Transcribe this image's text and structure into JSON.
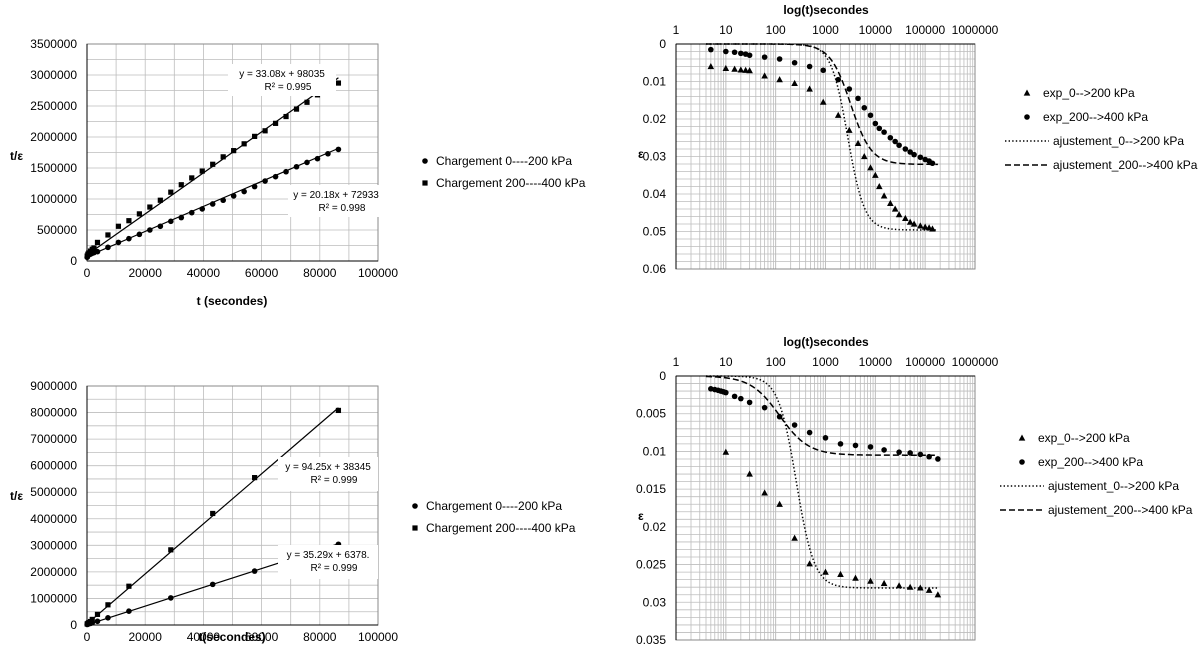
{
  "chart_data": [
    {
      "type": "scatter",
      "xlabel": "t (secondes)",
      "ylabel": "t/ε",
      "xlim": [
        0,
        100000
      ],
      "ylim": [
        0,
        3500000
      ],
      "x_ticks": [
        "0",
        "20000",
        "40000",
        "60000",
        "80000",
        "100000"
      ],
      "y_ticks": [
        "0",
        "500000",
        "1000000",
        "1500000",
        "2000000",
        "2500000",
        "3000000",
        "3500000"
      ],
      "grid": true,
      "legend_position": "right",
      "series": [
        {
          "name": "Chargement  0----200 kPa",
          "marker": "circle",
          "x": [
            60,
            300,
            600,
            1200,
            1800,
            2400,
            3600,
            7200,
            10800,
            14400,
            18000,
            21600,
            25200,
            28800,
            32400,
            36000,
            39600,
            43200,
            46800,
            50400,
            54000,
            57600,
            61200,
            64800,
            68400,
            72000,
            75600,
            79200,
            82800,
            86400
          ],
          "y": [
            60000,
            80000,
            100000,
            110000,
            125000,
            135000,
            150000,
            220000,
            300000,
            360000,
            430000,
            500000,
            560000,
            640000,
            700000,
            780000,
            840000,
            920000,
            980000,
            1050000,
            1120000,
            1200000,
            1290000,
            1360000,
            1440000,
            1520000,
            1590000,
            1650000,
            1730000,
            1800000
          ],
          "trendline": {
            "slope": 20.18,
            "intercept": 72933,
            "equation": "y = 20.18x + 72933",
            "r2": "R² = 0.998"
          }
        },
        {
          "name": "Chargement  200----400 kPa",
          "marker": "square",
          "x": [
            60,
            300,
            600,
            1200,
            1800,
            2400,
            3600,
            7200,
            10800,
            14400,
            18000,
            21600,
            25200,
            28800,
            32400,
            36000,
            39600,
            43200,
            46800,
            50400,
            54000,
            57600,
            61200,
            64800,
            68400,
            72000,
            75600,
            79200,
            86400
          ],
          "y": [
            80000,
            110000,
            130000,
            160000,
            190000,
            210000,
            300000,
            420000,
            560000,
            650000,
            760000,
            870000,
            980000,
            1110000,
            1230000,
            1340000,
            1450000,
            1560000,
            1680000,
            1780000,
            1890000,
            2010000,
            2100000,
            2220000,
            2330000,
            2450000,
            2560000,
            2680000,
            2870000
          ],
          "trendline": {
            "slope": 33.08,
            "intercept": 98035,
            "equation": "y = 33.08x + 98035",
            "r2": "R² = 0.995"
          }
        }
      ]
    },
    {
      "type": "scatter",
      "xlabel": "log(t)secondes",
      "ylabel": "ε",
      "x_scale": "log",
      "xlim": [
        1,
        1000000
      ],
      "ylim": [
        0,
        0.06
      ],
      "y_inverted": true,
      "x_ticks": [
        "1",
        "10",
        "100",
        "1000",
        "10000",
        "100000",
        "1000000"
      ],
      "y_ticks": [
        "0",
        "0.01",
        "0.02",
        "0.03",
        "0.04",
        "0.05",
        "0.06"
      ],
      "grid": true,
      "legend_position": "right",
      "series": [
        {
          "name": "exp_0-->200 kPa",
          "marker": "triangle",
          "x": [
            5,
            10,
            15,
            20,
            25,
            30,
            60,
            120,
            240,
            480,
            900,
            1800,
            3000,
            4500,
            6000,
            8000,
            10000,
            12000,
            15000,
            20000,
            25000,
            30000,
            40000,
            50000,
            60000,
            80000,
            100000,
            120000,
            140000
          ],
          "y": [
            0.006,
            0.0065,
            0.0067,
            0.0069,
            0.007,
            0.0071,
            0.0085,
            0.0095,
            0.0105,
            0.012,
            0.0155,
            0.019,
            0.023,
            0.0265,
            0.03,
            0.033,
            0.035,
            0.038,
            0.0405,
            0.0425,
            0.044,
            0.0455,
            0.0465,
            0.0475,
            0.048,
            0.0485,
            0.0488,
            0.049,
            0.0493
          ]
        },
        {
          "name": "exp_200-->400 kPa",
          "marker": "circle",
          "x": [
            5,
            10,
            15,
            20,
            25,
            30,
            60,
            120,
            240,
            480,
            900,
            1800,
            3000,
            4500,
            6000,
            8000,
            10000,
            12000,
            15000,
            20000,
            25000,
            30000,
            40000,
            50000,
            60000,
            80000,
            100000,
            120000,
            140000
          ],
          "y": [
            0.0015,
            0.002,
            0.0022,
            0.0025,
            0.0027,
            0.003,
            0.0035,
            0.004,
            0.005,
            0.006,
            0.007,
            0.0095,
            0.012,
            0.0145,
            0.017,
            0.019,
            0.0212,
            0.0225,
            0.0235,
            0.025,
            0.026,
            0.027,
            0.028,
            0.0288,
            0.0295,
            0.0302,
            0.0308,
            0.0312,
            0.0318
          ]
        },
        {
          "name": "ajustement_0-->200 kPa",
          "line": "dotted",
          "function": "logistic",
          "params": {
            "eps_inf": 0.0496,
            "t50": 2800,
            "k": 2.6
          }
        },
        {
          "name": "ajustement_200-->400 kPa",
          "line": "dashed",
          "function": "logistic",
          "params": {
            "eps_inf": 0.0321,
            "t50": 3200,
            "k": 2.1
          }
        }
      ]
    },
    {
      "type": "scatter",
      "xlabel": "t(secondes)",
      "ylabel": "t/ε",
      "xlim": [
        0,
        100000
      ],
      "ylim": [
        0,
        9000000
      ],
      "x_ticks": [
        "0",
        "20000",
        "40000",
        "60000",
        "80000",
        "100000"
      ],
      "y_ticks": [
        "0",
        "1000000",
        "2000000",
        "3000000",
        "4000000",
        "5000000",
        "6000000",
        "7000000",
        "8000000",
        "9000000"
      ],
      "grid": true,
      "legend_position": "right",
      "series": [
        {
          "name": "Chargement  0----200 kPa",
          "marker": "circle",
          "x": [
            60,
            300,
            600,
            1200,
            1800,
            3600,
            7200,
            14400,
            28800,
            43200,
            57600,
            86400
          ],
          "y": [
            20000,
            30000,
            50000,
            60000,
            80000,
            140000,
            270000,
            520000,
            1020000,
            1530000,
            2030000,
            3040000
          ],
          "trendline": {
            "slope": 35.29,
            "intercept": 6378,
            "equation": "y = 35.29x + 6378.",
            "r2": "R² = 0.999"
          }
        },
        {
          "name": "Chargement  200----400 kPa",
          "marker": "square",
          "x": [
            60,
            300,
            600,
            1200,
            1800,
            3600,
            7200,
            14400,
            28800,
            43200,
            57600,
            86400
          ],
          "y": [
            40000,
            60000,
            90000,
            130000,
            210000,
            400000,
            760000,
            1460000,
            2830000,
            4200000,
            5550000,
            8080000
          ],
          "trendline": {
            "slope": 94.25,
            "intercept": 38345,
            "equation": "y = 94.25x + 38345",
            "r2": "R² = 0.999"
          }
        }
      ]
    },
    {
      "type": "scatter",
      "xlabel": "log(t)secondes",
      "ylabel": "ε",
      "x_scale": "log",
      "xlim": [
        1,
        1000000
      ],
      "ylim": [
        0,
        0.035
      ],
      "y_inverted": true,
      "x_ticks": [
        "1",
        "10",
        "100",
        "1000",
        "10000",
        "100000",
        "1000000"
      ],
      "y_ticks": [
        "0",
        "0.005",
        "0.01",
        "0.015",
        "0.02",
        "0.025",
        "0.03",
        "0.035"
      ],
      "grid": true,
      "legend_position": "right",
      "series": [
        {
          "name": "exp_0-->200 kPa",
          "marker": "triangle",
          "x": [
            10,
            30,
            60,
            120,
            240,
            480,
            1000,
            2000,
            4000,
            8000,
            15000,
            30000,
            50000,
            80000,
            120000,
            180000
          ],
          "y": [
            0.0101,
            0.013,
            0.0155,
            0.017,
            0.0215,
            0.0249,
            0.026,
            0.0263,
            0.0268,
            0.0272,
            0.0275,
            0.0278,
            0.028,
            0.0281,
            0.0284,
            0.029
          ]
        },
        {
          "name": "exp_200-->400 kPa",
          "marker": "circle",
          "x": [
            5,
            6,
            7,
            8,
            9,
            10,
            15,
            20,
            30,
            60,
            120,
            240,
            480,
            1000,
            2000,
            4000,
            8000,
            15000,
            30000,
            50000,
            80000,
            120000,
            180000
          ],
          "y": [
            0.0017,
            0.0018,
            0.0019,
            0.002,
            0.0021,
            0.0022,
            0.0027,
            0.003,
            0.0035,
            0.0042,
            0.0054,
            0.0065,
            0.0075,
            0.0082,
            0.009,
            0.0092,
            0.0094,
            0.0098,
            0.0101,
            0.0102,
            0.0104,
            0.0107,
            0.011
          ]
        },
        {
          "name": "ajustement_0-->200 kPa",
          "line": "dotted",
          "function": "logistic",
          "params": {
            "eps_inf": 0.0281,
            "t50": 260,
            "k": 2.4
          }
        },
        {
          "name": "ajustement_200-->400 kPa",
          "line": "dashed",
          "function": "logistic",
          "params": {
            "eps_inf": 0.0105,
            "t50": 120,
            "k": 1.5
          }
        }
      ]
    }
  ]
}
